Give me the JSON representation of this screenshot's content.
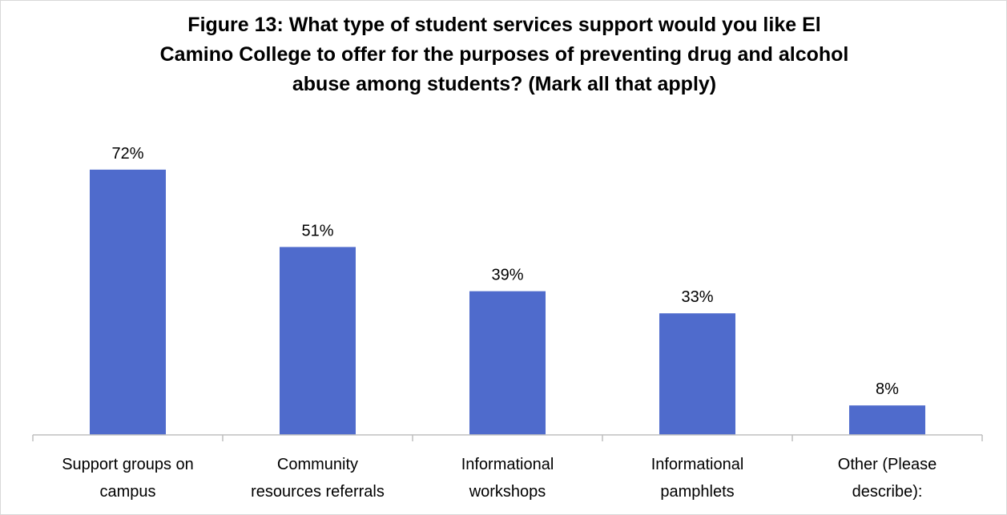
{
  "chart_data": {
    "type": "bar",
    "title_lines": [
      "Figure 13: What type of student services support would you like El",
      "Camino College to offer for the purposes of preventing drug and alcohol",
      "abuse among students? (Mark all that apply)"
    ],
    "categories": [
      [
        "Support groups on",
        "campus"
      ],
      [
        "Community",
        "resources referrals"
      ],
      [
        "Informational",
        "workshops"
      ],
      [
        "Informational",
        "pamphlets"
      ],
      [
        "Other (Please",
        "describe):"
      ]
    ],
    "values": [
      72,
      51,
      39,
      33,
      8
    ],
    "data_labels": [
      "72%",
      "51%",
      "39%",
      "33%",
      "8%"
    ],
    "unit": "%",
    "ylim": [
      0,
      75
    ],
    "bar_color": "#4f6bcc",
    "axis_color": "#bfbfbf",
    "grid": false,
    "legend": "none"
  }
}
